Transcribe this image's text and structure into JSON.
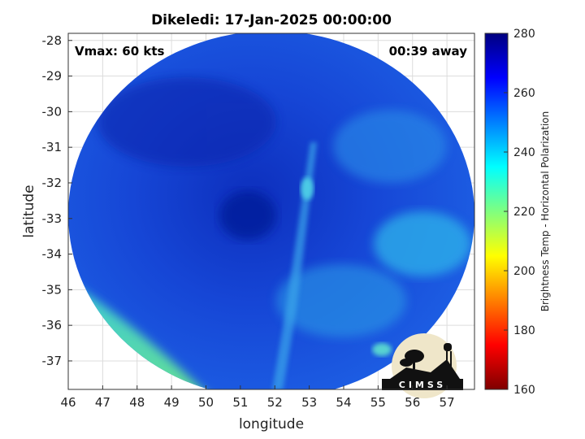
{
  "chart_data": {
    "type": "heatmap",
    "title": "Dikeledi: 17-Jan-2025 00:00:00",
    "annotations": {
      "vmax": "Vmax: 60 kts",
      "time_away": "00:39 away"
    },
    "xlabel": "longitude",
    "ylabel": "latitude",
    "xlim": [
      46,
      57.8
    ],
    "ylim": [
      -37.8,
      -27.8
    ],
    "xticks": [
      "46",
      "47",
      "48",
      "49",
      "50",
      "51",
      "52",
      "53",
      "54",
      "55",
      "56",
      "57"
    ],
    "yticks": [
      "-28",
      "-29",
      "-30",
      "-31",
      "-32",
      "-33",
      "-34",
      "-35",
      "-36",
      "-37"
    ],
    "grid": true,
    "colorbar": {
      "label": "Brightness Temp - Horizontal Polarization",
      "min": 160,
      "max": 280,
      "ticks": [
        "280",
        "260",
        "240",
        "220",
        "200",
        "180",
        "160"
      ],
      "colormap": "jet"
    },
    "field_summary": {
      "center_lon": 52.0,
      "center_lat": -32.8,
      "typical_value": 262,
      "coldest_core_value": 270,
      "warm_band_southwest_value": 238,
      "warm_patch_east_value": 243
    },
    "logo": "CIMSS"
  },
  "colors": {
    "background": "#ffffff",
    "grid": "#dcdcdc",
    "axes": "#333333"
  }
}
